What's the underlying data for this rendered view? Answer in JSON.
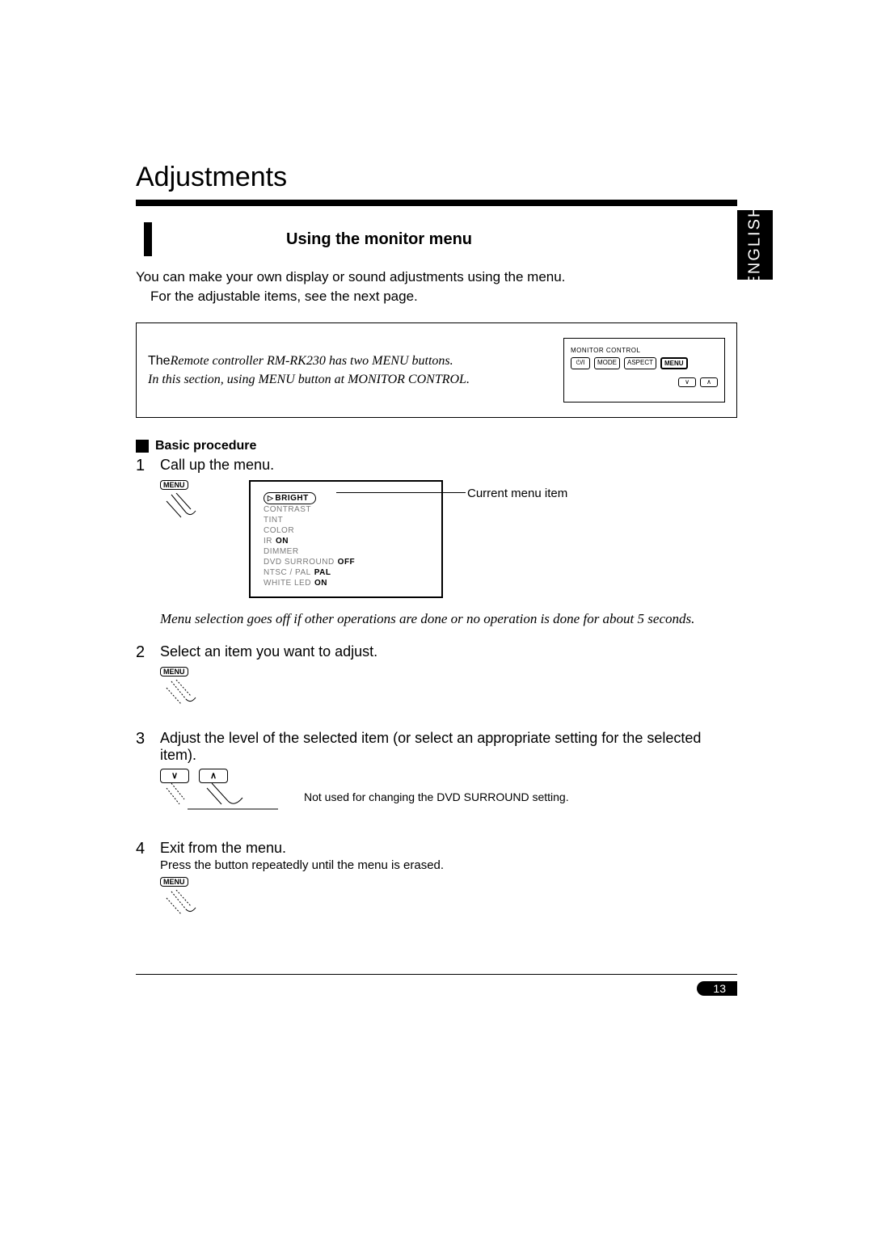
{
  "title": "Adjustments",
  "section_heading": "Using the monitor menu",
  "language_tab": "ENGLISH",
  "intro_line1": "You can make your own display or sound adjustments using the menu.",
  "intro_line2": "For the adjustable items, see the next page.",
  "infobox": {
    "prefix": "The",
    "italic1": "Remote controller   RM-RK230 has two MENU buttons.",
    "italic2": "In this section, using MENU button at MONITOR CONTROL."
  },
  "remote": {
    "label": "MONITOR  CONTROL",
    "buttons_row1": [
      "⏻/I",
      "MODE",
      "ASPECT",
      "MENU"
    ],
    "buttons_row2": [
      "∨",
      "∧"
    ]
  },
  "subheading": "Basic procedure",
  "steps": {
    "s1": {
      "num": "1",
      "text": "Call up the menu.",
      "button_label": "MENU",
      "osd_label": "Current menu item",
      "osd_items": [
        {
          "label": "BRIGHT",
          "selected": true
        },
        {
          "label": "CONTRAST"
        },
        {
          "label": "TINT"
        },
        {
          "label": "COLOR"
        },
        {
          "label": "IR",
          "value": "ON"
        },
        {
          "label": "DIMMER"
        },
        {
          "label": "DVD SURROUND",
          "value": "OFF"
        },
        {
          "label": "NTSC / PAL",
          "value": "PAL"
        },
        {
          "label": "WHITE LED",
          "value": "ON"
        }
      ],
      "note": "Menu selection goes off if other operations are done or no operation is done for about 5 seconds."
    },
    "s2": {
      "num": "2",
      "text": "Select an item you want to adjust.",
      "button_label": "MENU"
    },
    "s3": {
      "num": "3",
      "text": "Adjust the level of the selected item (or select an appropriate setting for the selected item).",
      "arrow_down": "∨",
      "arrow_up": "∧",
      "note": "Not used for changing the  DVD SURROUND  setting."
    },
    "s4": {
      "num": "4",
      "text": "Exit from the menu.",
      "sub": "Press the button repeatedly until the menu is erased.",
      "button_label": "MENU"
    }
  },
  "page_number": "13"
}
